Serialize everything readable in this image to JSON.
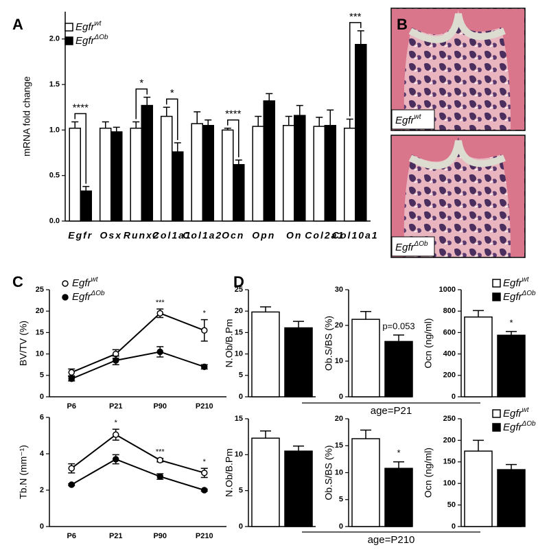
{
  "chart_data": [
    {
      "type": "bar",
      "panel": "A",
      "ylabel": "mRNA fold change",
      "legend": true,
      "categories": [
        "Egfr",
        "Osx",
        "Runx2",
        "Col1a1",
        "Col1a2",
        "Ocn",
        "Opn",
        "On",
        "Col2a1",
        "Col10a1"
      ],
      "series": [
        {
          "name": "Egfr",
          "name_sup": "wt",
          "color": "#ffffff",
          "values": [
            1.02,
            1.02,
            1.02,
            1.15,
            1.07,
            1.0,
            1.04,
            1.05,
            1.04,
            1.02
          ],
          "errors": [
            0.07,
            0.07,
            0.07,
            0.1,
            0.13,
            0.02,
            0.11,
            0.1,
            0.1,
            0.1
          ]
        },
        {
          "name": "Egfr",
          "name_sup": "ΔOb",
          "color": "#000000",
          "values": [
            0.33,
            0.98,
            1.27,
            0.76,
            1.05,
            0.62,
            1.32,
            1.16,
            1.05,
            1.94
          ],
          "errors": [
            0.05,
            0.05,
            0.09,
            0.1,
            0.06,
            0.05,
            0.08,
            0.11,
            0.17,
            0.15
          ]
        }
      ],
      "annotations": [
        "****",
        null,
        "*",
        "*",
        null,
        "****",
        null,
        null,
        null,
        "***"
      ],
      "ylim": [
        0,
        2.3
      ],
      "yticks": [
        {
          "value": 0,
          "label": "0.0"
        },
        0.5,
        {
          "value": 1,
          "label": "1.0"
        },
        1.5,
        {
          "value": 2,
          "label": "2.0"
        }
      ]
    },
    {
      "type": "line",
      "panel": "C",
      "ylabel": "BV/TV (%)",
      "legend": true,
      "categories": [
        "P6",
        "P21",
        "P90",
        "P210"
      ],
      "series": [
        {
          "name": "Egfr",
          "name_sup": "wt",
          "color": "#ffffff",
          "values": [
            5.7,
            10,
            19.5,
            15.5
          ],
          "errors": [
            0.8,
            1,
            1,
            2.5
          ]
        },
        {
          "name": "Egfr",
          "name_sup": "ΔOb",
          "color": "#000000",
          "values": [
            4.2,
            8.5,
            10.5,
            7
          ],
          "errors": [
            0.5,
            1,
            1.2,
            0.5
          ]
        }
      ],
      "annotations": [
        null,
        null,
        "***",
        "*"
      ],
      "ylim": [
        0,
        25
      ],
      "yticks": [
        0,
        5,
        10,
        15,
        20,
        25
      ]
    },
    {
      "type": "line",
      "ylabel": "Tb.N (mm⁻¹)",
      "categories": [
        "P6",
        "P21",
        "P90",
        "P210"
      ],
      "series": [
        {
          "color": "#ffffff",
          "values": [
            3.2,
            5.05,
            3.65,
            2.95
          ],
          "errors": [
            0.25,
            0.3,
            0.1,
            0.25
          ]
        },
        {
          "color": "#000000",
          "values": [
            2.3,
            3.7,
            2.75,
            2.0
          ],
          "errors": [
            0.05,
            0.25,
            0.15,
            0.05
          ]
        }
      ],
      "annotations": [
        null,
        "*",
        "***",
        "*"
      ],
      "ylim": [
        0,
        6
      ],
      "yticks": [
        0,
        2,
        4,
        6
      ]
    },
    {
      "type": "bar",
      "panel": "D",
      "ylabel": "N.Ob/B.Pm",
      "series": [
        {
          "color": "#ffffff",
          "values": [
            19.8
          ],
          "errors": [
            1.2
          ]
        },
        {
          "color": "#000000",
          "values": [
            16.1
          ],
          "errors": [
            1.5
          ]
        }
      ],
      "ylim": [
        0,
        25
      ],
      "yticks": [
        0,
        5,
        10,
        15,
        20,
        25
      ]
    },
    {
      "type": "bar",
      "ylabel": "Ob.S/BS (%)",
      "annotation": "p=0.053",
      "group_label": "age=P21",
      "series": [
        {
          "color": "#ffffff",
          "values": [
            21.7
          ],
          "errors": [
            2.2
          ]
        },
        {
          "color": "#000000",
          "values": [
            15.5
          ],
          "errors": [
            1.8
          ]
        }
      ],
      "ylim": [
        0,
        30
      ],
      "yticks": [
        0,
        10,
        20,
        30
      ]
    },
    {
      "type": "bar",
      "ylabel": "Ocn (ng/ml)",
      "annotation": "*",
      "legend": true,
      "series": [
        {
          "name": "Egfr",
          "name_sup": "wt",
          "color": "#ffffff",
          "values": [
            745
          ],
          "errors": [
            60
          ]
        },
        {
          "name": "Egfr",
          "name_sup": "ΔOb",
          "color": "#000000",
          "values": [
            575
          ],
          "errors": [
            35
          ]
        }
      ],
      "ylim": [
        0,
        1000
      ],
      "yticks": [
        0,
        200,
        400,
        600,
        800,
        1000
      ]
    },
    {
      "type": "bar",
      "ylabel": "N.Ob/B.Pm",
      "series": [
        {
          "color": "#ffffff",
          "values": [
            12.3
          ],
          "errors": [
            1
          ]
        },
        {
          "color": "#000000",
          "values": [
            10.5
          ],
          "errors": [
            0.7
          ]
        }
      ],
      "ylim": [
        0,
        15
      ],
      "yticks": [
        0,
        5,
        10,
        15
      ]
    },
    {
      "type": "bar",
      "ylabel": "Ob.S/BS (%)",
      "annotation": "*",
      "group_label": "age=P210",
      "series": [
        {
          "color": "#ffffff",
          "values": [
            16.3
          ],
          "errors": [
            1.6
          ]
        },
        {
          "color": "#000000",
          "values": [
            10.8
          ],
          "errors": [
            1.2
          ]
        }
      ],
      "ylim": [
        0,
        20
      ],
      "yticks": [
        0,
        5,
        10,
        15,
        20
      ]
    },
    {
      "type": "bar",
      "ylabel": "Ocn (ng/ml)",
      "legend": true,
      "series": [
        {
          "name": "Egfr",
          "name_sup": "wt",
          "color": "#ffffff",
          "values": [
            175
          ],
          "errors": [
            25
          ]
        },
        {
          "name": "Egfr",
          "name_sup": "ΔOb",
          "color": "#000000",
          "values": [
            132
          ],
          "errors": [
            12
          ]
        }
      ],
      "ylim": [
        0,
        250
      ],
      "yticks": [
        0,
        50,
        100,
        150,
        200,
        250
      ]
    }
  ],
  "panel_B": {
    "panel": "B",
    "images": [
      {
        "label": "Egfr",
        "label_sup": "wt"
      },
      {
        "label": "Egfr",
        "label_sup": "ΔOb"
      }
    ]
  }
}
